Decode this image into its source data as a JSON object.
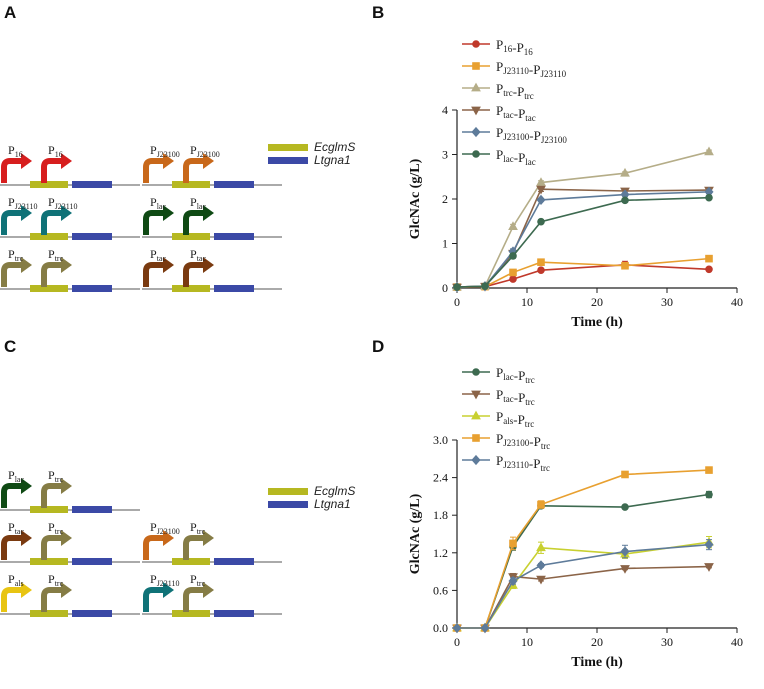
{
  "panels": {
    "a": "A",
    "b": "B",
    "c": "C",
    "d": "D"
  },
  "gene_legend": [
    {
      "name": "EcglmS",
      "color": "#b6b821"
    },
    {
      "name": "Ltgna1",
      "color": "#3b49a6"
    }
  ],
  "colors": {
    "P16": "#c0392b",
    "PJ23110": "#0f7277",
    "Ptrc": "#857c45",
    "Ptac": "#7a3a10",
    "PJ23100": "#c8681a",
    "Plac": "#0f4a14",
    "Pals": "#e8c412"
  },
  "constructs_A": [
    {
      "labels": [
        {
          "main": "P",
          "sub": "16"
        },
        {
          "main": "P",
          "sub": "16"
        }
      ],
      "arrow_colors": [
        "#d71e1e",
        "#d71e1e"
      ]
    },
    {
      "labels": [
        {
          "main": "P",
          "sub": "J23100"
        },
        {
          "main": "P",
          "sub": "J23100"
        }
      ],
      "arrow_colors": [
        "#c8681a",
        "#c8681a"
      ]
    },
    {
      "labels": [
        {
          "main": "P",
          "sub": "J23110"
        },
        {
          "main": "P",
          "sub": "J23110"
        }
      ],
      "arrow_colors": [
        "#0f7277",
        "#0f7277"
      ]
    },
    {
      "labels": [
        {
          "main": "P",
          "sub": "lac"
        },
        {
          "main": "P",
          "sub": "lac"
        }
      ],
      "arrow_colors": [
        "#0f4a14",
        "#0f4a14"
      ]
    },
    {
      "labels": [
        {
          "main": "P",
          "sub": "trc"
        },
        {
          "main": "P",
          "sub": "trc"
        }
      ],
      "arrow_colors": [
        "#857c45",
        "#857c45"
      ]
    },
    {
      "labels": [
        {
          "main": "P",
          "sub": "tac"
        },
        {
          "main": "P",
          "sub": "tac"
        }
      ],
      "arrow_colors": [
        "#7a3a10",
        "#7a3a10"
      ]
    }
  ],
  "constructs_C": [
    {
      "labels": [
        {
          "main": "P",
          "sub": "lac"
        },
        {
          "main": "P",
          "sub": "trc"
        }
      ],
      "arrow_colors": [
        "#0f4a14",
        "#857c45"
      ]
    },
    {
      "labels": [
        {
          "main": "P",
          "sub": "tac"
        },
        {
          "main": "P",
          "sub": "trc"
        }
      ],
      "arrow_colors": [
        "#7a3a10",
        "#857c45"
      ]
    },
    {
      "labels": [
        {
          "main": "P",
          "sub": "J23100"
        },
        {
          "main": "P",
          "sub": "trc"
        }
      ],
      "arrow_colors": [
        "#c8681a",
        "#857c45"
      ]
    },
    {
      "labels": [
        {
          "main": "P",
          "sub": "als"
        },
        {
          "main": "P",
          "sub": "trc"
        }
      ],
      "arrow_colors": [
        "#e8c412",
        "#857c45"
      ]
    },
    {
      "labels": [
        {
          "main": "P",
          "sub": "J23110"
        },
        {
          "main": "P",
          "sub": "trc"
        }
      ],
      "arrow_colors": [
        "#0f7277",
        "#857c45"
      ]
    }
  ],
  "chart_data": [
    {
      "panel": "B",
      "type": "line",
      "xlabel": "Time (h)",
      "ylabel": "GlcNAc (g/L)",
      "xlim": [
        0,
        40
      ],
      "ylim": [
        0,
        4
      ],
      "xticks": [
        0,
        10,
        20,
        30,
        40
      ],
      "yticks": [
        0,
        1,
        2,
        3,
        4
      ],
      "ytick_labels": [
        "0",
        "1",
        "2",
        "3",
        "4"
      ],
      "x": [
        0,
        4,
        8,
        12,
        24,
        36
      ],
      "series": [
        {
          "legend": [
            {
              "main": "P",
              "sub": "16"
            },
            {
              "main": "-P",
              "sub": "16"
            }
          ],
          "color": "#c0392b",
          "marker": "circle",
          "values": [
            0.02,
            0.03,
            0.2,
            0.4,
            0.52,
            0.42
          ],
          "errors": [
            0,
            0,
            0.02,
            0.03,
            0.08,
            0.03
          ]
        },
        {
          "legend": [
            {
              "main": "P",
              "sub": "J23110"
            },
            {
              "main": "-P",
              "sub": "J23110"
            }
          ],
          "color": "#e8a030",
          "marker": "square",
          "values": [
            0.02,
            0.03,
            0.35,
            0.58,
            0.5,
            0.66
          ],
          "errors": [
            0,
            0,
            0.03,
            0.03,
            0.05,
            0.03
          ]
        },
        {
          "legend": [
            {
              "main": "P",
              "sub": "trc"
            },
            {
              "main": "-P",
              "sub": "trc"
            }
          ],
          "color": "#b5ad88",
          "marker": "triangle-up",
          "values": [
            0.02,
            0.04,
            1.38,
            2.37,
            2.58,
            3.06
          ],
          "errors": [
            0,
            0,
            0.05,
            0.04,
            0.03,
            0.04
          ]
        },
        {
          "legend": [
            {
              "main": "P",
              "sub": "tac"
            },
            {
              "main": "-P",
              "sub": "tac"
            }
          ],
          "color": "#8b6448",
          "marker": "triangle-down",
          "values": [
            0.02,
            0.04,
            0.78,
            2.22,
            2.18,
            2.2
          ],
          "errors": [
            0,
            0,
            0.05,
            0.05,
            0.05,
            0.04
          ]
        },
        {
          "legend": [
            {
              "main": "P",
              "sub": "J23100"
            },
            {
              "main": "-P",
              "sub": "J23100"
            }
          ],
          "color": "#5e7b9a",
          "marker": "diamond",
          "values": [
            0.02,
            0.04,
            0.82,
            1.98,
            2.1,
            2.16
          ],
          "errors": [
            0,
            0,
            0.06,
            0.03,
            0.04,
            0.04
          ]
        },
        {
          "legend": [
            {
              "main": "P",
              "sub": "lac"
            },
            {
              "main": "-P",
              "sub": "lac"
            }
          ],
          "color": "#3d6a50",
          "marker": "circle",
          "values": [
            0.02,
            0.04,
            0.72,
            1.49,
            1.97,
            2.03
          ],
          "errors": [
            0,
            0,
            0.05,
            0.04,
            0.04,
            0.04
          ]
        }
      ]
    },
    {
      "panel": "D",
      "type": "line",
      "xlabel": "Time (h)",
      "ylabel": "GlcNAc (g/L)",
      "xlim": [
        0,
        40
      ],
      "ylim": [
        0,
        3.0
      ],
      "xticks": [
        0,
        10,
        20,
        30,
        40
      ],
      "yticks": [
        0,
        0.6,
        1.2,
        1.8,
        2.4,
        3.0
      ],
      "ytick_labels": [
        "0.0",
        "0.6",
        "1.2",
        "1.8",
        "2.4",
        "3.0"
      ],
      "x": [
        0,
        4,
        8,
        12,
        24,
        36
      ],
      "series": [
        {
          "legend": [
            {
              "main": "P",
              "sub": "lac"
            },
            {
              "main": "-P",
              "sub": "trc"
            }
          ],
          "color": "#3d6a50",
          "marker": "circle",
          "values": [
            0,
            0,
            1.3,
            1.95,
            1.93,
            2.13
          ],
          "errors": [
            0,
            0,
            0.06,
            0.04,
            0.02,
            0.05
          ]
        },
        {
          "legend": [
            {
              "main": "P",
              "sub": "tac"
            },
            {
              "main": "-P",
              "sub": "trc"
            }
          ],
          "color": "#8b6448",
          "marker": "triangle-down",
          "values": [
            0,
            0,
            0.82,
            0.78,
            0.95,
            0.98
          ],
          "errors": [
            0,
            0,
            0.05,
            0.03,
            0.02,
            0.02
          ]
        },
        {
          "legend": [
            {
              "main": "P",
              "sub": "als"
            },
            {
              "main": "-P",
              "sub": "trc"
            }
          ],
          "color": "#c8d030",
          "marker": "triangle-up",
          "values": [
            0,
            0,
            0.68,
            1.28,
            1.18,
            1.37
          ],
          "errors": [
            0,
            0,
            0.05,
            0.09,
            0.07,
            0.09
          ]
        },
        {
          "legend": [
            {
              "main": "P",
              "sub": "J23100"
            },
            {
              "main": "-P",
              "sub": "trc"
            }
          ],
          "color": "#e8a030",
          "marker": "square",
          "values": [
            0,
            0,
            1.35,
            1.97,
            2.45,
            2.52
          ],
          "errors": [
            0,
            0,
            0.1,
            0.06,
            0.02,
            0.03
          ]
        },
        {
          "legend": [
            {
              "main": "P",
              "sub": "J23110"
            },
            {
              "main": "-P",
              "sub": "trc"
            }
          ],
          "color": "#5e7b9a",
          "marker": "diamond",
          "values": [
            0,
            0,
            0.75,
            1.0,
            1.22,
            1.33
          ],
          "errors": [
            0,
            0,
            0.05,
            0.03,
            0.1,
            0.08
          ]
        }
      ]
    }
  ]
}
